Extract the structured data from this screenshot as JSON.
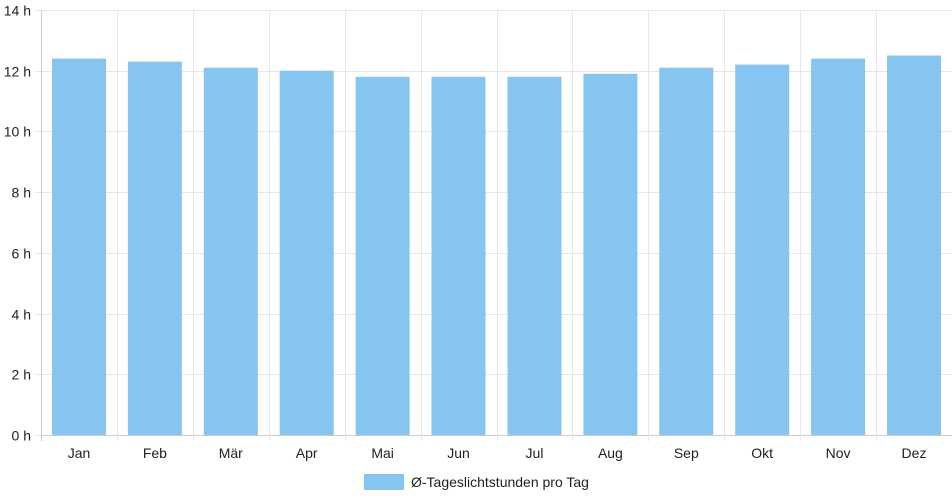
{
  "chart_data": {
    "type": "bar",
    "categories": [
      "Jan",
      "Feb",
      "Mär",
      "Apr",
      "Mai",
      "Jun",
      "Jul",
      "Aug",
      "Sep",
      "Okt",
      "Nov",
      "Dez"
    ],
    "series": [
      {
        "name": "Ø-Tageslichtstunden pro Tag",
        "values": [
          12.4,
          12.3,
          12.1,
          12.0,
          11.8,
          11.8,
          11.8,
          11.9,
          12.1,
          12.2,
          12.4,
          12.5
        ],
        "color": "#86c5f0"
      }
    ],
    "y_ticks": [
      "0 h",
      "2 h",
      "4 h",
      "6 h",
      "8 h",
      "10 h",
      "12 h",
      "14 h"
    ],
    "ylim": [
      0,
      14
    ],
    "grid": true,
    "legend_position": "bottom-center"
  }
}
